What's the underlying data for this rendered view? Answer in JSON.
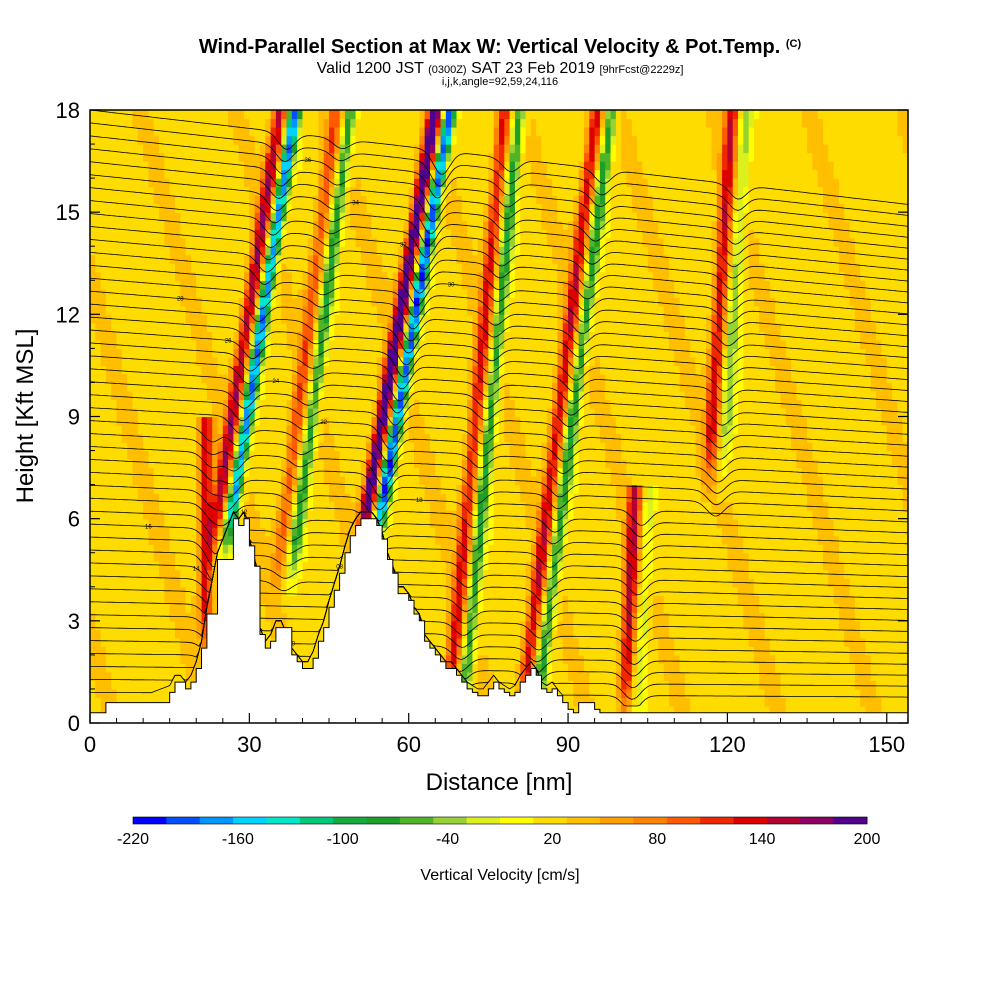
{
  "chart_data": {
    "type": "heatmap",
    "title": "Wind-Parallel Section at Max W: Vertical Velocity & Pot.Temp.",
    "title_mark": "(C)",
    "subtitle_valid": "Valid 1200 JST",
    "subtitle_utc": "(0300Z)",
    "subtitle_date": "SAT 23 Feb 2019",
    "subtitle_fcst": "[9hrFcst@2229z]",
    "subtitle_indices": "i,j,k,angle=92,59,24,116",
    "xlabel": "Distance [nm]",
    "ylabel": "Height [Kft MSL]",
    "xlim": [
      0,
      154
    ],
    "ylim": [
      0,
      18
    ],
    "x_ticks": [
      "0",
      "30",
      "60",
      "90",
      "120",
      "150"
    ],
    "x_tick_values": [
      0,
      30,
      60,
      90,
      120,
      150
    ],
    "y_ticks": [
      "0",
      "3",
      "6",
      "9",
      "12",
      "15",
      "18"
    ],
    "y_tick_values": [
      0,
      3,
      6,
      9,
      12,
      15,
      18
    ],
    "colorbar": {
      "label": "Vertical Velocity [cm/s]",
      "min": -220,
      "max": 200,
      "tick_labels": [
        "-220",
        "-160",
        "-100",
        "-40",
        "20",
        "80",
        "140",
        "200"
      ],
      "tick_values": [
        -220,
        -160,
        -100,
        -40,
        20,
        80,
        140,
        200
      ],
      "colors": [
        "#0000ff",
        "#0050ff",
        "#0096ff",
        "#00d2ff",
        "#00e8c8",
        "#00c878",
        "#14aa3c",
        "#1ea028",
        "#50b428",
        "#96d232",
        "#dcf01e",
        "#ffff00",
        "#ffdc00",
        "#ffbe00",
        "#ffa000",
        "#ff8200",
        "#ff5a00",
        "#f02800",
        "#dc0000",
        "#b40032",
        "#8c0064",
        "#50008c"
      ]
    },
    "vertical_velocity_features": [
      {
        "x": 25,
        "x_end": 31,
        "y_bottom": 6,
        "y_top": 18,
        "w_min": -200,
        "w_max": 140,
        "lean": 1.0
      },
      {
        "x": 37,
        "x_end": 40,
        "y_bottom": 5,
        "y_top": 18,
        "w_min": -100,
        "w_max": 80,
        "lean": 0.8
      },
      {
        "x": 53,
        "x_end": 59,
        "y_bottom": 6,
        "y_top": 18,
        "w_min": -220,
        "w_max": 200,
        "lean": 1.1
      },
      {
        "x": 69,
        "x_end": 73,
        "y_bottom": 1,
        "y_top": 18,
        "w_min": -100,
        "w_max": 110,
        "lean": 0.6
      },
      {
        "x": 83,
        "x_end": 86,
        "y_bottom": 1,
        "y_top": 18,
        "w_min": -100,
        "w_max": 120,
        "lean": 0.8
      },
      {
        "x": 102,
        "x_end": 104,
        "y_bottom": 1,
        "y_top": 6,
        "w_min": -40,
        "w_max": 130,
        "lean": 0.3
      },
      {
        "x": 118,
        "x_end": 120,
        "y_bottom": 8,
        "y_top": 18,
        "w_min": -60,
        "w_max": 120,
        "lean": 0.4
      },
      {
        "x": 23,
        "x_end": 23,
        "y_bottom": 3,
        "y_top": 8,
        "w_min": 0,
        "w_max": 120,
        "lean": 0.0
      }
    ],
    "potential_temperature_contour_labels": [
      "08",
      "10",
      "12",
      "14",
      "16",
      "18",
      "20",
      "22",
      "24",
      "26",
      "28",
      "30",
      "32",
      "34",
      "36",
      "38",
      "40"
    ],
    "terrain": {
      "x": [
        0,
        3,
        10,
        15,
        16,
        17,
        18,
        19,
        20,
        21,
        22,
        24,
        27,
        28,
        29,
        30,
        31,
        32,
        33,
        34,
        35,
        36,
        38,
        39,
        40,
        41,
        42,
        43,
        44,
        45,
        46,
        47,
        48,
        49,
        50,
        51,
        52,
        53,
        54,
        55,
        56,
        57,
        58,
        59,
        60,
        61,
        62,
        63,
        64,
        65,
        66,
        67,
        68,
        69,
        70,
        71,
        72,
        73,
        74,
        75,
        76,
        77,
        78,
        79,
        80,
        81,
        82,
        83,
        84,
        85,
        86,
        87,
        88,
        89,
        90,
        91,
        92,
        93,
        94,
        95,
        96,
        97,
        98,
        99,
        154
      ],
      "height_kft": [
        0.3,
        0.6,
        0.6,
        0.9,
        1.2,
        1.2,
        1.0,
        1.2,
        1.6,
        2.2,
        3.2,
        4.8,
        6.0,
        5.8,
        6.0,
        5.2,
        4.6,
        2.6,
        2.2,
        2.4,
        2.8,
        2.8,
        2.0,
        1.8,
        1.6,
        1.6,
        1.9,
        2.4,
        2.8,
        3.4,
        3.9,
        4.4,
        5.0,
        5.5,
        5.8,
        6.0,
        6.0,
        6.0,
        5.8,
        5.4,
        4.8,
        4.4,
        3.8,
        3.8,
        3.6,
        3.2,
        3.0,
        2.4,
        2.2,
        2.0,
        1.8,
        1.6,
        1.6,
        1.4,
        1.2,
        1.0,
        0.9,
        0.8,
        0.8,
        1.0,
        1.2,
        1.0,
        0.9,
        0.8,
        0.9,
        1.2,
        1.4,
        1.6,
        1.4,
        1.0,
        0.9,
        1.0,
        0.8,
        0.6,
        0.4,
        0.3,
        0.6,
        0.6,
        0.6,
        0.4,
        0.3,
        0.3,
        0.3,
        0.3,
        0.3
      ]
    }
  }
}
